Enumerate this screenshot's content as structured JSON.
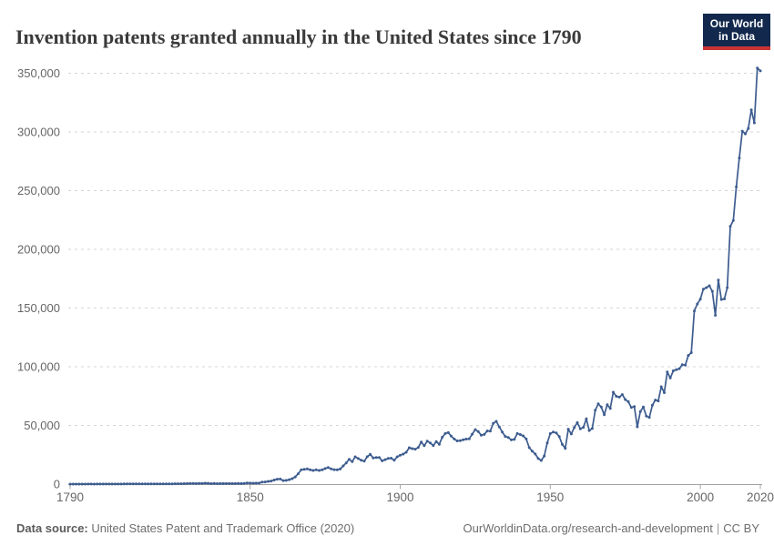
{
  "header": {
    "logo": {
      "line1": "Our World",
      "line2": "in Data",
      "bg_color": "#12294d",
      "accent_color": "#ca3433"
    }
  },
  "chart_data": {
    "type": "line",
    "title": "Invention patents granted annually in the United States since 1790",
    "xlabel": "",
    "ylabel": "",
    "x_range": [
      1790,
      2020
    ],
    "ylim": [
      0,
      350000
    ],
    "grid": "horizontal-dashed",
    "legend": "none",
    "xticks": [
      {
        "value": 1790,
        "label": "1790"
      },
      {
        "value": 1850,
        "label": "1850"
      },
      {
        "value": 1900,
        "label": "1900"
      },
      {
        "value": 1950,
        "label": "1950"
      },
      {
        "value": 2000,
        "label": "2000"
      },
      {
        "value": 2020,
        "label": "2020"
      }
    ],
    "yticks": [
      {
        "value": 0,
        "label": "0"
      },
      {
        "value": 50000,
        "label": "50,000"
      },
      {
        "value": 100000,
        "label": "100,000"
      },
      {
        "value": 150000,
        "label": "150,000"
      },
      {
        "value": 200000,
        "label": "200,000"
      },
      {
        "value": 250000,
        "label": "250,000"
      },
      {
        "value": 300000,
        "label": "300,000"
      },
      {
        "value": 350000,
        "label": "350,000"
      }
    ],
    "series": [
      {
        "name": "Invention patents granted annually",
        "color": "#3d5c8f",
        "marker": "dot",
        "year_start": 1790,
        "year_step": 1,
        "values": [
          3,
          33,
          11,
          20,
          22,
          12,
          44,
          51,
          28,
          44,
          41,
          44,
          65,
          97,
          84,
          57,
          63,
          99,
          158,
          203,
          223,
          215,
          238,
          181,
          210,
          173,
          206,
          174,
          222,
          156,
          155,
          168,
          200,
          173,
          228,
          304,
          323,
          331,
          368,
          447,
          544,
          573,
          474,
          586,
          630,
          752,
          702,
          426,
          514,
          404,
          458,
          490,
          488,
          493,
          478,
          473,
          566,
          495,
          583,
          984,
          883,
          752,
          885,
          844,
          1755,
          1881,
          2302,
          2674,
          3455,
          4160,
          4357,
          3020,
          3214,
          3773,
          4630,
          6088,
          8863,
          12277,
          12526,
          12931,
          12137,
          11659,
          12180,
          11616,
          12230,
          13291,
          14169,
          12920,
          12345,
          12165,
          12903,
          15500,
          18091,
          21162,
          19118,
          23285,
          21767,
          20403,
          19551,
          23324,
          25313,
          22312,
          22647,
          22750,
          19855,
          20856,
          21822,
          22067,
          20377,
          23278,
          24644,
          25546,
          27119,
          31029,
          30258,
          29775,
          31170,
          35859,
          32735,
          36561,
          35141,
          32856,
          36198,
          33917,
          39892,
          43118,
          43892,
          40935,
          38452,
          36797,
          37060,
          37798,
          38369,
          38616,
          42574,
          46432,
          44733,
          41717,
          42357,
          45267,
          45226,
          51756,
          53458,
          48774,
          44420,
          40618,
          39782,
          37683,
          38061,
          43073,
          42238,
          41109,
          38449,
          31054,
          28053,
          25695,
          21803,
          20139,
          23963,
          35131,
          43040,
          44326,
          43616,
          40468,
          33809,
          30432,
          46817,
          42744,
          48330,
          52408,
          47170,
          48368,
          55691,
          45679,
          47376,
          62857,
          68406,
          65652,
          59104,
          67559,
          64429,
          78317,
          74810,
          74143,
          76278,
          71994,
          70226,
          65269,
          66102,
          48854,
          61819,
          65771,
          57888,
          56860,
          67200,
          71661,
          70860,
          82952,
          77924,
          95537,
          90365,
          96511,
          97444,
          98342,
          101676,
          101419,
          109645,
          111984,
          147517,
          153485,
          157494,
          166035,
          167331,
          169023,
          164290,
          143806,
          173772,
          157282,
          157772,
          167349,
          219614,
          224505,
          253155,
          277835,
          300678,
          298407,
          303049,
          318829,
          307759,
          354430,
          351993
        ]
      }
    ]
  },
  "footer": {
    "datasource_label": "Data source:",
    "datasource_text": " United States Patent and Trademark Office (2020)",
    "link_text": "OurWorldinData.org/research-and-development",
    "separator": "|",
    "license_text": "CC BY"
  }
}
